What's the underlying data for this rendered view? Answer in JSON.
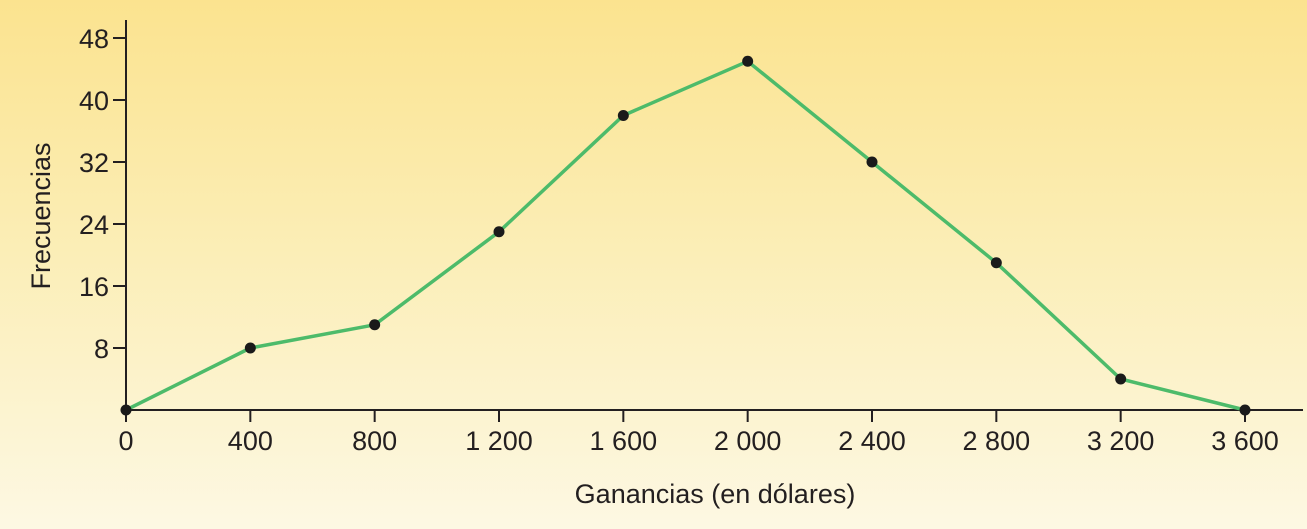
{
  "chart_data": {
    "type": "line",
    "title": "",
    "xlabel": "Ganancias (en dólares)",
    "ylabel": "Frecuencias",
    "x_ticks": [
      {
        "value": 0,
        "label": "0"
      },
      {
        "value": 400,
        "label": "400"
      },
      {
        "value": 800,
        "label": "800"
      },
      {
        "value": 1200,
        "label": "1 200"
      },
      {
        "value": 1600,
        "label": "1 600"
      },
      {
        "value": 2000,
        "label": "2 000"
      },
      {
        "value": 2400,
        "label": "2 400"
      },
      {
        "value": 2800,
        "label": "2 800"
      },
      {
        "value": 3200,
        "label": "3 200"
      },
      {
        "value": 3600,
        "label": "3 600"
      }
    ],
    "y_ticks": [
      {
        "value": 8,
        "label": "8"
      },
      {
        "value": 16,
        "label": "16"
      },
      {
        "value": 24,
        "label": "24"
      },
      {
        "value": 32,
        "label": "32"
      },
      {
        "value": 40,
        "label": "40"
      },
      {
        "value": 48,
        "label": "48"
      }
    ],
    "xlim": [
      0,
      3600
    ],
    "ylim": [
      0,
      48
    ],
    "grid": false,
    "series": [
      {
        "points": [
          {
            "x": 0,
            "y": 0
          },
          {
            "x": 400,
            "y": 8
          },
          {
            "x": 800,
            "y": 11
          },
          {
            "x": 1200,
            "y": 23
          },
          {
            "x": 1600,
            "y": 38
          },
          {
            "x": 2000,
            "y": 45
          },
          {
            "x": 2400,
            "y": 32
          },
          {
            "x": 2800,
            "y": 19
          },
          {
            "x": 3200,
            "y": 4
          },
          {
            "x": 3600,
            "y": 0
          }
        ]
      }
    ],
    "colors": {
      "line": "#4dbb6a",
      "marker": "#1a1a1a",
      "axis": "#231f20",
      "text": "#231f20"
    }
  }
}
